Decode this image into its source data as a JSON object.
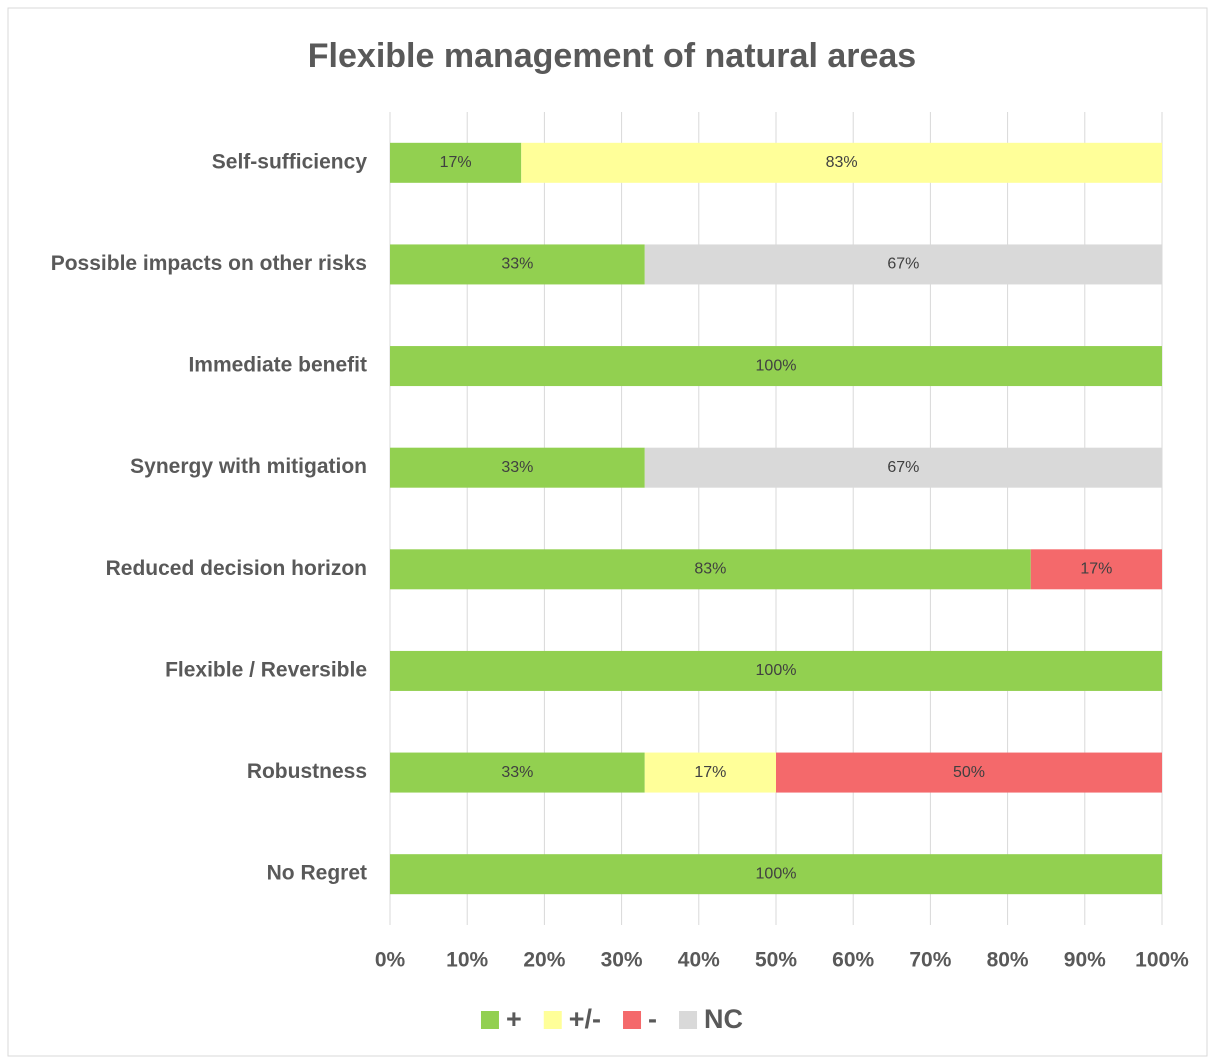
{
  "chart_data": {
    "type": "stacked-barh",
    "title": "Flexible management of natural areas",
    "categories": [
      "Self-sufficiency",
      "Possible impacts on other risks",
      "Immediate benefit",
      "Synergy with mitigation",
      "Reduced decision horizon",
      "Flexible / Reversible",
      "Robustness",
      "No Regret"
    ],
    "series": [
      {
        "name": "+",
        "color": "#92d050",
        "values": [
          17,
          33,
          100,
          33,
          83,
          100,
          33,
          100
        ],
        "value_labels": [
          "17%",
          "33%",
          "100%",
          "33%",
          "83%",
          "100%",
          "33%",
          "100%"
        ]
      },
      {
        "name": "+/-",
        "color": "#ffff99",
        "values": [
          83,
          null,
          null,
          null,
          null,
          null,
          17,
          null
        ],
        "value_labels": [
          "83%",
          null,
          null,
          null,
          null,
          null,
          "17%",
          null
        ]
      },
      {
        "name": "-",
        "color": "#f4696b",
        "values": [
          null,
          null,
          null,
          null,
          17,
          null,
          50,
          null
        ],
        "value_labels": [
          null,
          null,
          null,
          null,
          "17%",
          null,
          "50%",
          null
        ]
      },
      {
        "name": "NC",
        "color": "#d9d9d9",
        "values": [
          null,
          67,
          null,
          67,
          null,
          null,
          null,
          null
        ],
        "value_labels": [
          null,
          "67%",
          null,
          "67%",
          null,
          null,
          null,
          null
        ]
      }
    ],
    "xlim": [
      0,
      100
    ],
    "xticks": [
      {
        "value": 0,
        "label": "0%"
      },
      {
        "value": 10,
        "label": "10%"
      },
      {
        "value": 20,
        "label": "20%"
      },
      {
        "value": 30,
        "label": "30%"
      },
      {
        "value": 40,
        "label": "40%"
      },
      {
        "value": 50,
        "label": "50%"
      },
      {
        "value": 60,
        "label": "60%"
      },
      {
        "value": 70,
        "label": "70%"
      },
      {
        "value": 80,
        "label": "80%"
      },
      {
        "value": 90,
        "label": "90%"
      },
      {
        "value": 100,
        "label": "100%"
      }
    ],
    "grid": true,
    "legend": "bottom"
  }
}
